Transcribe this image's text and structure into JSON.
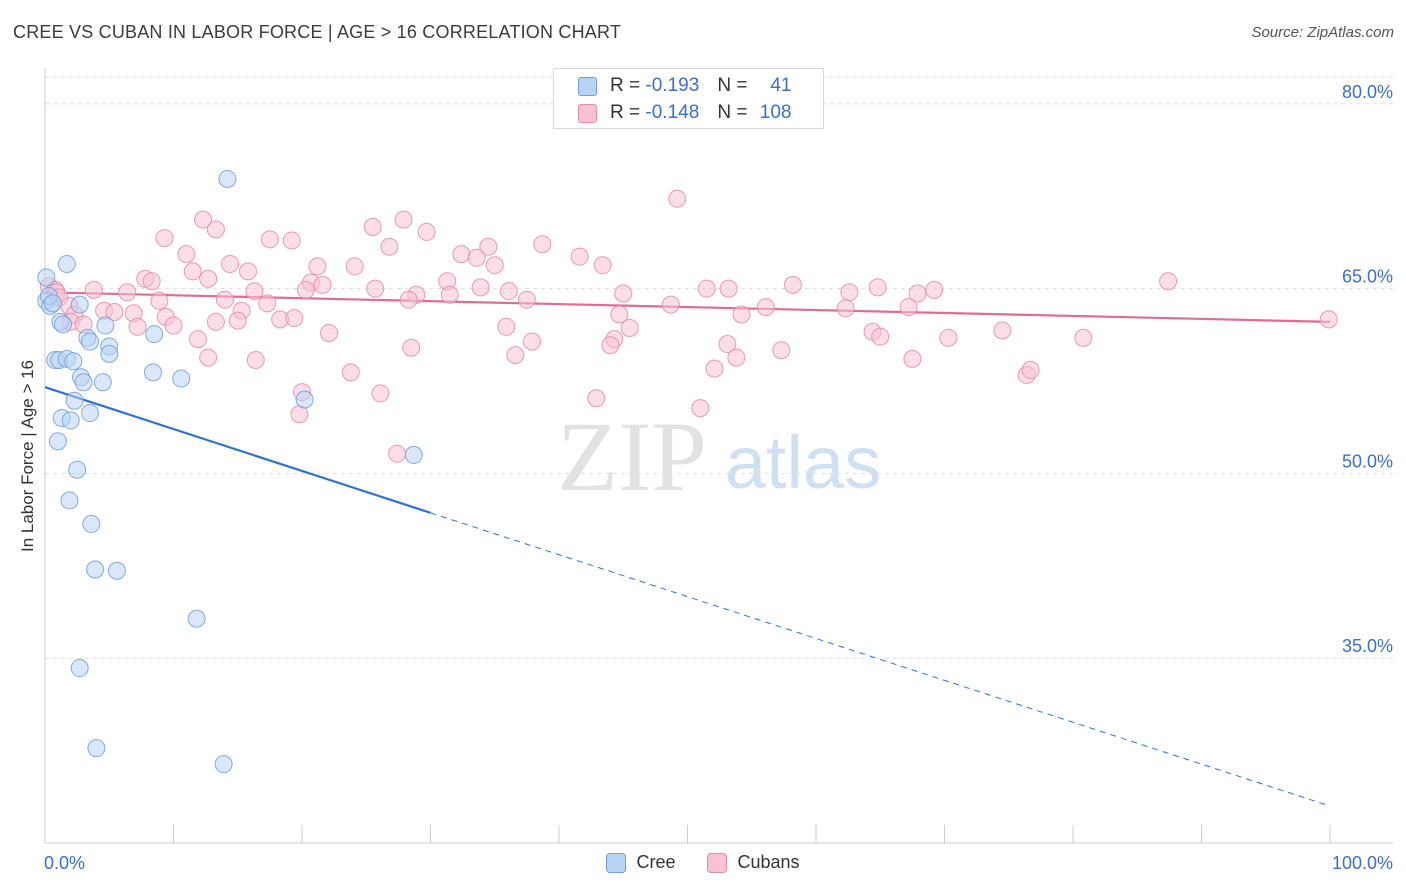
{
  "title": "CREE VS CUBAN IN LABOR FORCE | AGE > 16 CORRELATION CHART",
  "source": "Source: ZipAtlas.com",
  "watermark": {
    "zip": "ZIP",
    "atlas": "atlas"
  },
  "colors": {
    "cree_fill": "#b9d3f3",
    "cree_stroke": "#6f9fdc",
    "cree_line": "#2f72d4",
    "cubans_fill": "#f7c3d3",
    "cubans_stroke": "#e88aa9",
    "cubans_line": "#e06c95",
    "axis_label": "#3b6fc9",
    "grid": "#dddddd"
  },
  "legend_top": {
    "rows": [
      {
        "series": "cree",
        "r_label": "R =",
        "r_value": "-0.193",
        "n_label": "N =",
        "n_value": "41"
      },
      {
        "series": "cubans",
        "r_label": "R =",
        "r_value": "-0.148",
        "n_label": "N =",
        "n_value": "108"
      }
    ]
  },
  "legend_bottom": {
    "cree": "Cree",
    "cubans": "Cubans"
  },
  "chart_data": {
    "type": "scatter",
    "title": "CREE VS CUBAN IN LABOR FORCE | AGE > 16 CORRELATION CHART",
    "xlabel": "",
    "ylabel": "In Labor Force | Age > 16",
    "xlim": [
      0,
      100
    ],
    "ylim": [
      20,
      82.5
    ],
    "x_tick_labels": {
      "left": "0.0%",
      "right": "100.0%"
    },
    "y_ticks": [
      {
        "value": 80,
        "label": "80.0%"
      },
      {
        "value": 65,
        "label": "65.0%"
      },
      {
        "value": 50,
        "label": "50.0%"
      },
      {
        "value": 35,
        "label": "35.0%"
      }
    ],
    "grid": true,
    "series": [
      {
        "name": "Cree",
        "points": [
          [
            14.2,
            73.9
          ],
          [
            1.7,
            67.0
          ],
          [
            0.1,
            65.9
          ],
          [
            0.1,
            64.0
          ],
          [
            0.4,
            63.6
          ],
          [
            2.7,
            63.7
          ],
          [
            1.2,
            62.3
          ],
          [
            4.7,
            62.0
          ],
          [
            8.5,
            61.3
          ],
          [
            3.3,
            61.0
          ],
          [
            3.5,
            60.7
          ],
          [
            5.0,
            60.3
          ],
          [
            5.0,
            59.7
          ],
          [
            0.8,
            59.2
          ],
          [
            1.1,
            59.2
          ],
          [
            1.7,
            59.3
          ],
          [
            2.2,
            59.1
          ],
          [
            8.4,
            58.2
          ],
          [
            2.8,
            57.8
          ],
          [
            10.6,
            57.7
          ],
          [
            3.0,
            57.4
          ],
          [
            4.5,
            57.4
          ],
          [
            2.3,
            55.9
          ],
          [
            20.2,
            56.0
          ],
          [
            3.5,
            54.9
          ],
          [
            1.3,
            54.5
          ],
          [
            2.0,
            54.3
          ],
          [
            1.0,
            52.6
          ],
          [
            28.7,
            51.5
          ],
          [
            2.5,
            50.3
          ],
          [
            1.9,
            47.8
          ],
          [
            3.6,
            45.9
          ],
          [
            3.9,
            42.2
          ],
          [
            5.6,
            42.1
          ],
          [
            11.8,
            38.2
          ],
          [
            2.7,
            34.2
          ],
          [
            4.0,
            27.7
          ],
          [
            13.9,
            26.4
          ],
          [
            0.3,
            64.4
          ],
          [
            0.6,
            63.8
          ],
          [
            1.4,
            62.1
          ]
        ]
      },
      {
        "name": "Cubans",
        "points": [
          [
            49.2,
            72.3
          ],
          [
            12.3,
            70.6
          ],
          [
            27.9,
            70.6
          ],
          [
            13.3,
            69.8
          ],
          [
            25.5,
            70.0
          ],
          [
            29.7,
            69.6
          ],
          [
            9.3,
            69.1
          ],
          [
            17.5,
            69.0
          ],
          [
            19.2,
            68.9
          ],
          [
            38.7,
            68.6
          ],
          [
            34.5,
            68.4
          ],
          [
            26.8,
            68.4
          ],
          [
            41.6,
            67.6
          ],
          [
            32.4,
            67.8
          ],
          [
            33.6,
            67.5
          ],
          [
            11.0,
            67.8
          ],
          [
            14.4,
            67.0
          ],
          [
            21.2,
            66.8
          ],
          [
            24.1,
            66.8
          ],
          [
            35.0,
            66.9
          ],
          [
            43.4,
            66.9
          ],
          [
            11.5,
            66.4
          ],
          [
            15.8,
            66.4
          ],
          [
            7.8,
            65.8
          ],
          [
            8.3,
            65.6
          ],
          [
            12.7,
            65.8
          ],
          [
            20.7,
            65.5
          ],
          [
            21.6,
            65.3
          ],
          [
            31.3,
            65.6
          ],
          [
            33.9,
            65.1
          ],
          [
            51.5,
            65.0
          ],
          [
            53.2,
            65.0
          ],
          [
            58.2,
            65.3
          ],
          [
            62.6,
            64.7
          ],
          [
            64.8,
            65.1
          ],
          [
            87.4,
            65.6
          ],
          [
            0.3,
            65.2
          ],
          [
            0.8,
            64.9
          ],
          [
            3.8,
            64.9
          ],
          [
            6.4,
            64.7
          ],
          [
            16.3,
            64.8
          ],
          [
            20.3,
            64.9
          ],
          [
            25.7,
            65.0
          ],
          [
            28.9,
            64.5
          ],
          [
            31.5,
            64.5
          ],
          [
            36.1,
            64.8
          ],
          [
            45.0,
            64.6
          ],
          [
            67.9,
            64.6
          ],
          [
            69.2,
            64.9
          ],
          [
            0.9,
            64.7
          ],
          [
            1.1,
            64.3
          ],
          [
            8.9,
            64.0
          ],
          [
            14.0,
            64.1
          ],
          [
            17.3,
            63.8
          ],
          [
            28.3,
            64.1
          ],
          [
            37.5,
            64.1
          ],
          [
            48.7,
            63.7
          ],
          [
            56.1,
            63.5
          ],
          [
            62.3,
            63.4
          ],
          [
            67.2,
            63.5
          ],
          [
            1.9,
            63.6
          ],
          [
            4.6,
            63.2
          ],
          [
            5.4,
            63.1
          ],
          [
            6.9,
            63.0
          ],
          [
            15.3,
            63.2
          ],
          [
            9.4,
            62.7
          ],
          [
            18.3,
            62.5
          ],
          [
            19.4,
            62.6
          ],
          [
            2.3,
            62.9
          ],
          [
            2.0,
            62.3
          ],
          [
            3.0,
            62.1
          ],
          [
            13.3,
            62.3
          ],
          [
            10.0,
            62.0
          ],
          [
            15.0,
            62.4
          ],
          [
            44.7,
            62.9
          ],
          [
            54.2,
            62.9
          ],
          [
            45.5,
            61.8
          ],
          [
            35.9,
            61.9
          ],
          [
            7.2,
            61.9
          ],
          [
            64.4,
            61.5
          ],
          [
            74.5,
            61.6
          ],
          [
            22.1,
            61.4
          ],
          [
            65.0,
            61.1
          ],
          [
            70.3,
            61.0
          ],
          [
            80.8,
            61.0
          ],
          [
            11.9,
            60.9
          ],
          [
            37.9,
            60.7
          ],
          [
            44.3,
            60.9
          ],
          [
            53.1,
            60.5
          ],
          [
            28.5,
            60.2
          ],
          [
            57.3,
            60.0
          ],
          [
            44.0,
            60.4
          ],
          [
            36.6,
            59.6
          ],
          [
            53.8,
            59.4
          ],
          [
            67.5,
            59.3
          ],
          [
            16.4,
            59.2
          ],
          [
            12.7,
            59.4
          ],
          [
            52.1,
            58.5
          ],
          [
            23.8,
            58.2
          ],
          [
            76.4,
            58.0
          ],
          [
            76.7,
            58.4
          ],
          [
            20.0,
            56.6
          ],
          [
            26.1,
            56.5
          ],
          [
            42.9,
            56.1
          ],
          [
            51.0,
            55.3
          ],
          [
            19.8,
            54.8
          ],
          [
            27.4,
            51.6
          ],
          [
            99.9,
            62.5
          ]
        ]
      }
    ],
    "trend_lines": [
      {
        "series": "Cree",
        "solid": [
          [
            0,
            57.0
          ],
          [
            30,
            46.8
          ]
        ],
        "dashed": [
          [
            30,
            46.8
          ],
          [
            100,
            23.0
          ]
        ]
      },
      {
        "series": "Cubans",
        "solid": [
          [
            0,
            64.7
          ],
          [
            100,
            62.3
          ]
        ]
      }
    ]
  }
}
